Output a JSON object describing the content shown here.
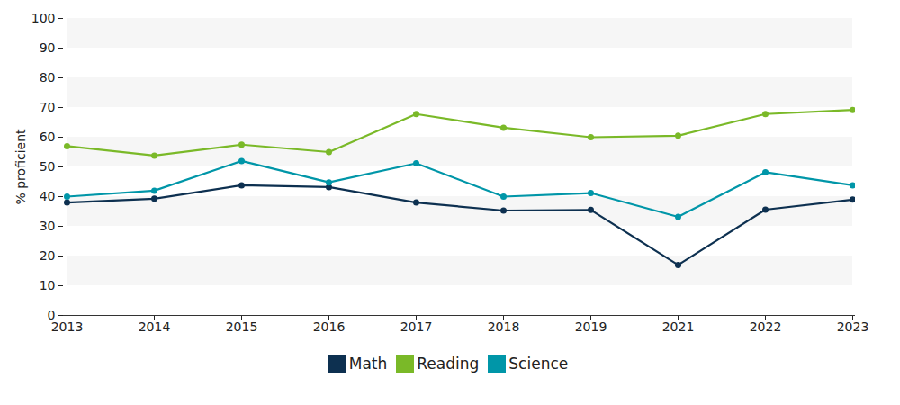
{
  "chart_data": {
    "type": "line",
    "y_label": "% proficient",
    "categories": [
      "2013",
      "2014",
      "2015",
      "2016",
      "2017",
      "2018",
      "2019",
      "2021",
      "2022",
      "2023"
    ],
    "series": [
      {
        "name": "Math",
        "color": "#0d3050",
        "marker": "circle",
        "line_style": "solid",
        "values": [
          38,
          39.3,
          43.8,
          43.2,
          38,
          35.3,
          35.5,
          17,
          35.6,
          39
        ]
      },
      {
        "name": "Reading",
        "color": "#7ab928",
        "marker": "circle",
        "line_style": "solid",
        "values": [
          57,
          53.8,
          57.5,
          55,
          67.8,
          63.2,
          60,
          60.5,
          67.8,
          69.2
        ]
      },
      {
        "name": "Science",
        "color": "#0096a8",
        "marker": "circle",
        "line_style": "solid",
        "values": [
          40,
          42,
          52,
          44.8,
          51.2,
          40,
          41.2,
          33.2,
          48.2,
          43.8
        ]
      }
    ],
    "ylim": [
      0,
      100
    ],
    "yticks": [
      0,
      10,
      20,
      30,
      40,
      50,
      60,
      70,
      80,
      90,
      100
    ],
    "grid": true,
    "legend": "bottom"
  }
}
